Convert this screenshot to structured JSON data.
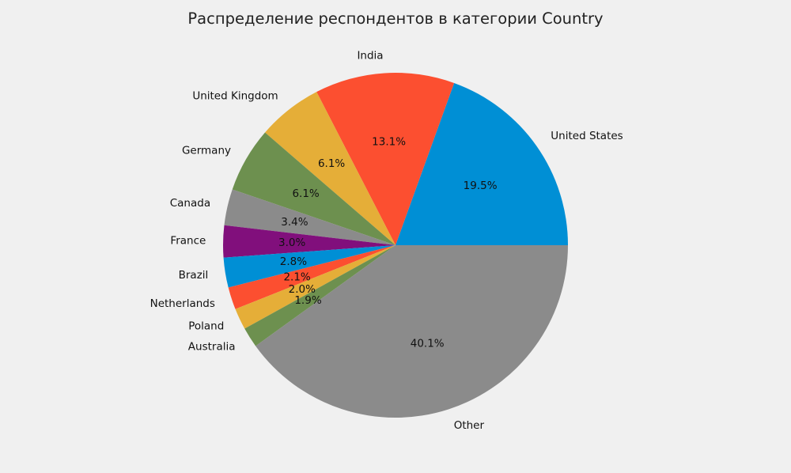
{
  "chart_data": {
    "type": "pie",
    "title": "Распределение респондентов в категории Country",
    "slices": [
      {
        "label": "United States",
        "value": 19.5,
        "pct_label": "19.5%",
        "color": "#008fd5"
      },
      {
        "label": "India",
        "value": 13.1,
        "pct_label": "13.1%",
        "color": "#fc4f30"
      },
      {
        "label": "United Kingdom",
        "value": 6.1,
        "pct_label": "6.1%",
        "color": "#e5ae38"
      },
      {
        "label": "Germany",
        "value": 6.1,
        "pct_label": "6.1%",
        "color": "#6d904f"
      },
      {
        "label": "Canada",
        "value": 3.4,
        "pct_label": "3.4%",
        "color": "#8b8b8b"
      },
      {
        "label": "France",
        "value": 3.0,
        "pct_label": "3.0%",
        "color": "#810f7c"
      },
      {
        "label": "Brazil",
        "value": 2.8,
        "pct_label": "2.8%",
        "color": "#008fd5"
      },
      {
        "label": "Netherlands",
        "value": 2.1,
        "pct_label": "2.1%",
        "color": "#fc4f30"
      },
      {
        "label": "Poland",
        "value": 2.0,
        "pct_label": "2.0%",
        "color": "#e5ae38"
      },
      {
        "label": "Australia",
        "value": 1.9,
        "pct_label": "1.9%",
        "color": "#6d904f"
      },
      {
        "label": "Other",
        "value": 40.1,
        "pct_label": "40.1%",
        "color": "#8b8b8b"
      }
    ]
  }
}
